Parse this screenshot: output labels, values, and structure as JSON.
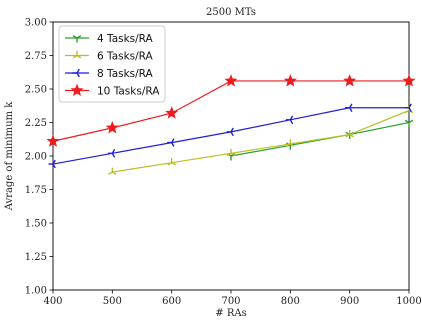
{
  "chart_data": {
    "type": "line",
    "title": "2500 MTs",
    "xlabel": "# RAs",
    "ylabel": "Avrage of minimum k",
    "xlim": [
      400,
      1000
    ],
    "ylim": [
      1.0,
      3.0
    ],
    "xticks": [
      400,
      500,
      600,
      700,
      800,
      900,
      1000
    ],
    "yticks": [
      "1.00",
      "1.25",
      "1.50",
      "1.75",
      "2.00",
      "2.25",
      "2.50",
      "2.75",
      "3.00"
    ],
    "grid": false,
    "legend_position": "top-left",
    "series": [
      {
        "name": "4 Tasks/RA",
        "color": "#2ca02c",
        "marker": "tri_down",
        "x": [
          700,
          800,
          900,
          1000
        ],
        "values": [
          2.0,
          2.08,
          2.16,
          2.25
        ]
      },
      {
        "name": "6 Tasks/RA",
        "color": "#bcbd22",
        "marker": "tri_up",
        "x": [
          500,
          600,
          700,
          800,
          900,
          1000
        ],
        "values": [
          1.88,
          1.95,
          2.02,
          2.09,
          2.16,
          2.34
        ]
      },
      {
        "name": "8 Tasks/RA",
        "color": "#1f1fd6",
        "marker": "tri_left",
        "x": [
          400,
          500,
          600,
          700,
          800,
          900,
          1000
        ],
        "values": [
          1.94,
          2.02,
          2.1,
          2.18,
          2.27,
          2.36,
          2.36
        ]
      },
      {
        "name": "10 Tasks/RA",
        "color": "#ee1c1c",
        "marker": "star",
        "x": [
          400,
          500,
          600,
          700,
          800,
          900,
          1000
        ],
        "values": [
          2.11,
          2.21,
          2.32,
          2.56,
          2.56,
          2.56,
          2.56
        ]
      }
    ]
  }
}
